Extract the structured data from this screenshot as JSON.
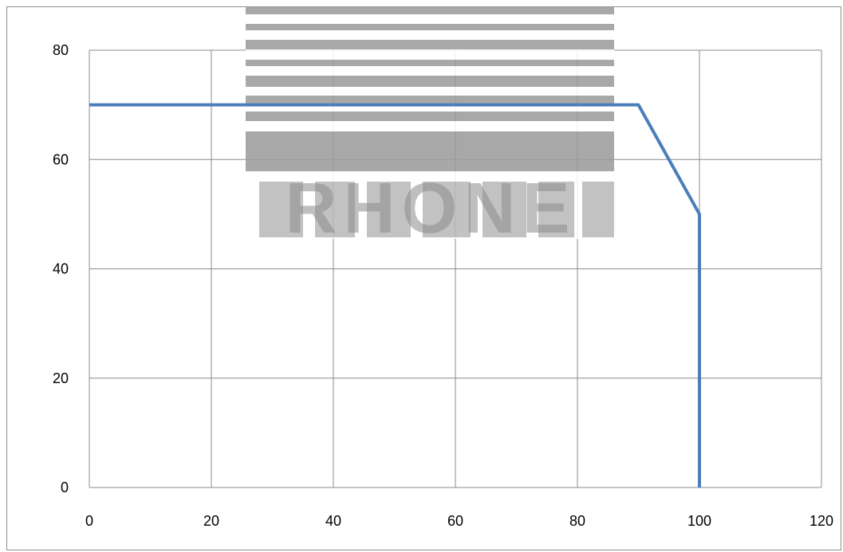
{
  "colors": {
    "series": "#4a7ebb",
    "grid": "#8c8c8c",
    "watermark": "#999999"
  },
  "watermark": {
    "icon": "logo-watermark-icon",
    "text": "RHONE"
  },
  "chart_data": {
    "type": "line",
    "title": "",
    "xlabel": "",
    "ylabel": "",
    "xlim": [
      0,
      120
    ],
    "ylim": [
      0,
      80
    ],
    "x_ticks": [
      0,
      20,
      40,
      60,
      80,
      100,
      120
    ],
    "y_ticks": [
      0,
      20,
      40,
      60,
      80
    ],
    "x_tick_labels": [
      "0",
      "20",
      "40",
      "60",
      "80",
      "100",
      "120"
    ],
    "y_tick_labels": [
      "0",
      "20",
      "40",
      "60",
      "80"
    ],
    "grid": true,
    "legend": "none",
    "series": [
      {
        "x": [
          0,
          90,
          100,
          100
        ],
        "y": [
          70,
          70,
          50,
          0
        ]
      }
    ]
  }
}
